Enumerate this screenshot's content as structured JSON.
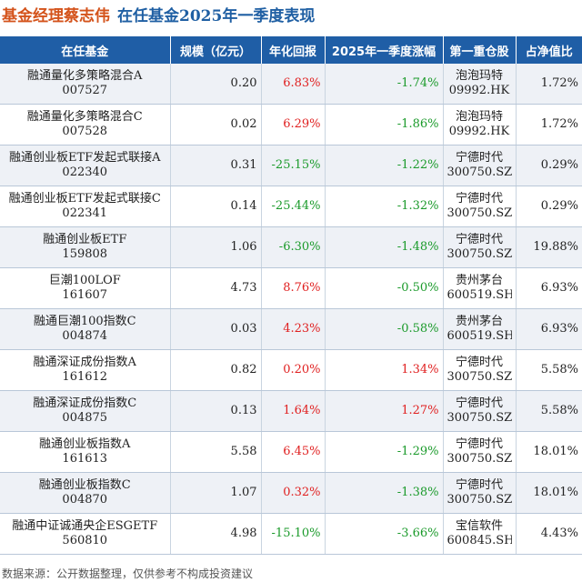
{
  "title": {
    "manager": "基金经理蔡志伟",
    "subtitle": "在任基金2025年一季度表现"
  },
  "table": {
    "headers": [
      "在任基金",
      "规模（亿元）",
      "年化回报",
      "2025年一季度涨幅",
      "第一重仓股",
      "占净值比"
    ],
    "rows": [
      {
        "name": "融通量化多策略混合A",
        "code": "007527",
        "scale": "0.20",
        "annual": "6.83%",
        "q1": "-1.74%",
        "stock": "泡泡玛特",
        "stock_code": "09992.HK",
        "ratio": "1.72%"
      },
      {
        "name": "融通量化多策略混合C",
        "code": "007528",
        "scale": "0.02",
        "annual": "6.29%",
        "q1": "-1.86%",
        "stock": "泡泡玛特",
        "stock_code": "09992.HK",
        "ratio": "1.72%"
      },
      {
        "name": "融通创业板ETF发起式联接A",
        "code": "022340",
        "scale": "0.31",
        "annual": "-25.15%",
        "q1": "-1.22%",
        "stock": "宁德时代",
        "stock_code": "300750.SZ",
        "ratio": "0.29%"
      },
      {
        "name": "融通创业板ETF发起式联接C",
        "code": "022341",
        "scale": "0.14",
        "annual": "-25.44%",
        "q1": "-1.32%",
        "stock": "宁德时代",
        "stock_code": "300750.SZ",
        "ratio": "0.29%"
      },
      {
        "name": "融通创业板ETF",
        "code": "159808",
        "scale": "1.06",
        "annual": "-6.30%",
        "q1": "-1.48%",
        "stock": "宁德时代",
        "stock_code": "300750.SZ",
        "ratio": "19.88%"
      },
      {
        "name": "巨潮100LOF",
        "code": "161607",
        "scale": "4.73",
        "annual": "8.76%",
        "q1": "-0.50%",
        "stock": "贵州茅台",
        "stock_code": "600519.SH",
        "ratio": "6.93%"
      },
      {
        "name": "融通巨潮100指数C",
        "code": "004874",
        "scale": "0.03",
        "annual": "4.23%",
        "q1": "-0.58%",
        "stock": "贵州茅台",
        "stock_code": "600519.SH",
        "ratio": "6.93%"
      },
      {
        "name": "融通深证成份指数A",
        "code": "161612",
        "scale": "0.82",
        "annual": "0.20%",
        "q1": "1.34%",
        "stock": "宁德时代",
        "stock_code": "300750.SZ",
        "ratio": "5.58%"
      },
      {
        "name": "融通深证成份指数C",
        "code": "004875",
        "scale": "0.13",
        "annual": "1.64%",
        "q1": "1.27%",
        "stock": "宁德时代",
        "stock_code": "300750.SZ",
        "ratio": "5.58%"
      },
      {
        "name": "融通创业板指数A",
        "code": "161613",
        "scale": "5.58",
        "annual": "6.45%",
        "q1": "-1.29%",
        "stock": "宁德时代",
        "stock_code": "300750.SZ",
        "ratio": "18.01%"
      },
      {
        "name": "融通创业板指数C",
        "code": "004870",
        "scale": "1.07",
        "annual": "0.32%",
        "q1": "-1.38%",
        "stock": "宁德时代",
        "stock_code": "300750.SZ",
        "ratio": "18.01%"
      },
      {
        "name": "融通中证诚通央企ESGETF",
        "code": "560810",
        "scale": "4.98",
        "annual": "-15.10%",
        "q1": "-3.66%",
        "stock": "宝信软件",
        "stock_code": "600845.SH",
        "ratio": "4.43%"
      }
    ]
  },
  "footer": "数据来源：公开数据整理，仅供参考不构成投资建议",
  "colors": {
    "header_bg": "#1f5ea6",
    "positive": "#e02020",
    "negative": "#1a9a2a",
    "title_manager": "#d4531b",
    "title_subtitle": "#1f5fa3"
  }
}
